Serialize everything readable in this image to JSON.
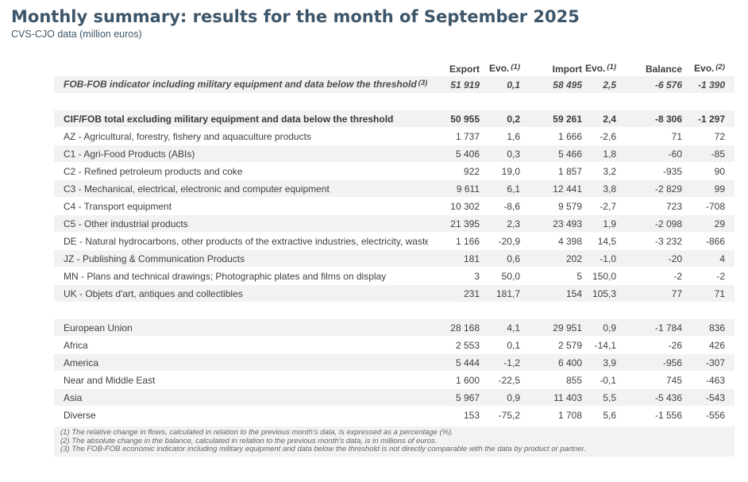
{
  "header": {
    "title": "Monthly summary: results for the month of September 2025",
    "subtitle": "CVS-CJO data (million euros)"
  },
  "table": {
    "columns": [
      {
        "label": "Export",
        "sup": ""
      },
      {
        "label": "Evo.",
        "sup": "(1)"
      },
      {
        "label": "Import",
        "sup": ""
      },
      {
        "label": "Evo.",
        "sup": "(1)"
      },
      {
        "label": "Balance",
        "sup": ""
      },
      {
        "label": "Evo.",
        "sup": "(2)"
      }
    ],
    "fob_row": {
      "label": "FOB-FOB indicator including military equipment and data below the threshold",
      "sup": "(3)",
      "values": [
        "51 919",
        "0,1",
        "58 495",
        "2,5",
        "-6 576",
        "-1 390"
      ]
    },
    "cif_row": {
      "label": "CIF/FOB total excluding military equipment and data below the threshold",
      "sup": "",
      "values": [
        "50 955",
        "0,2",
        "59 261",
        "2,4",
        "-8 306",
        "-1 297"
      ]
    },
    "product_rows": [
      {
        "label": "AZ - Agricultural, forestry, fishery and aquaculture products",
        "values": [
          "1 737",
          "1,6",
          "1 666",
          "-2,6",
          "71",
          "72"
        ]
      },
      {
        "label": "C1 - Agri-Food Products (ABIs)",
        "values": [
          "5 406",
          "0,3",
          "5 466",
          "1,8",
          "-60",
          "-85"
        ]
      },
      {
        "label": "C2 - Refined petroleum products and coke",
        "values": [
          "922",
          "19,0",
          "1 857",
          "3,2",
          "-935",
          "90"
        ]
      },
      {
        "label": "C3 - Mechanical, electrical, electronic and computer equipment",
        "values": [
          "9 611",
          "6,1",
          "12 441",
          "3,8",
          "-2 829",
          "99"
        ]
      },
      {
        "label": "C4 - Transport equipment",
        "values": [
          "10 302",
          "-8,6",
          "9 579",
          "-2,7",
          "723",
          "-708"
        ]
      },
      {
        "label": "C5 - Other industrial products",
        "values": [
          "21 395",
          "2,3",
          "23 493",
          "1,9",
          "-2 098",
          "29"
        ]
      },
      {
        "label": "DE - Natural hydrocarbons, other products of the extractive industries, electricity, waste",
        "values": [
          "1 166",
          "-20,9",
          "4 398",
          "14,5",
          "-3 232",
          "-866"
        ]
      },
      {
        "label": "JZ - Publishing & Communication Products",
        "values": [
          "181",
          "0,6",
          "202",
          "-1,0",
          "-20",
          "4"
        ]
      },
      {
        "label": "MN - Plans and technical drawings; Photographic plates and films on display",
        "values": [
          "3",
          "50,0",
          "5",
          "150,0",
          "-2",
          "-2"
        ]
      },
      {
        "label": "UK - Objets d'art, antiques and collectibles",
        "values": [
          "231",
          "181,7",
          "154",
          "105,3",
          "77",
          "71"
        ]
      }
    ],
    "region_rows": [
      {
        "label": "European Union",
        "values": [
          "28 168",
          "4,1",
          "29 951",
          "0,9",
          "-1 784",
          "836"
        ]
      },
      {
        "label": "Africa",
        "values": [
          "2 553",
          "0,1",
          "2 579",
          "-14,1",
          "-26",
          "426"
        ]
      },
      {
        "label": "America",
        "values": [
          "5 444",
          "-1,2",
          "6 400",
          "3,9",
          "-956",
          "-307"
        ]
      },
      {
        "label": "Near and Middle East",
        "values": [
          "1 600",
          "-22,5",
          "855",
          "-0,1",
          "745",
          "-463"
        ]
      },
      {
        "label": "Asia",
        "values": [
          "5 967",
          "0,9",
          "11 403",
          "5,5",
          "-5 436",
          "-543"
        ]
      },
      {
        "label": "Diverse",
        "values": [
          "153",
          "-75,2",
          "1 708",
          "5,6",
          "-1 556",
          "-556"
        ]
      }
    ]
  },
  "footnotes": [
    "(1) The relative change in flows, calculated in relation to the previous month's data, is expressed as a percentage (%).",
    "(2) The absolute change in the balance, calculated in relation to the previous month's data, is in millions of euros.",
    "(3) The FOB-FOB economic indicator including military equipment and data below the threshold is not directly comparable with the data by product or partner."
  ]
}
